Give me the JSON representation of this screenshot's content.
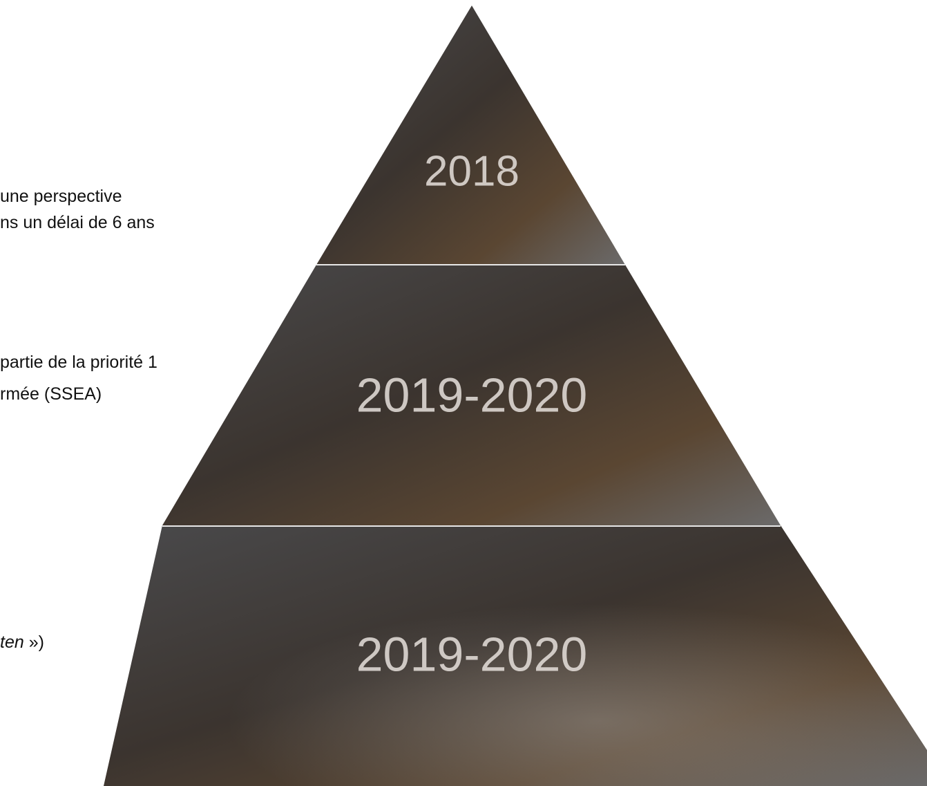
{
  "side_text": [
    "une perspective",
    "ns un délai de 6 ans",
    "partie de la priorité 1",
    "rmée (SSEA)"
  ],
  "last_line": {
    "italic": "ten",
    "rest": " »)"
  },
  "tiers": [
    {
      "label": "2018"
    },
    {
      "label": "2019-2020"
    },
    {
      "label": "2019-2020"
    }
  ]
}
